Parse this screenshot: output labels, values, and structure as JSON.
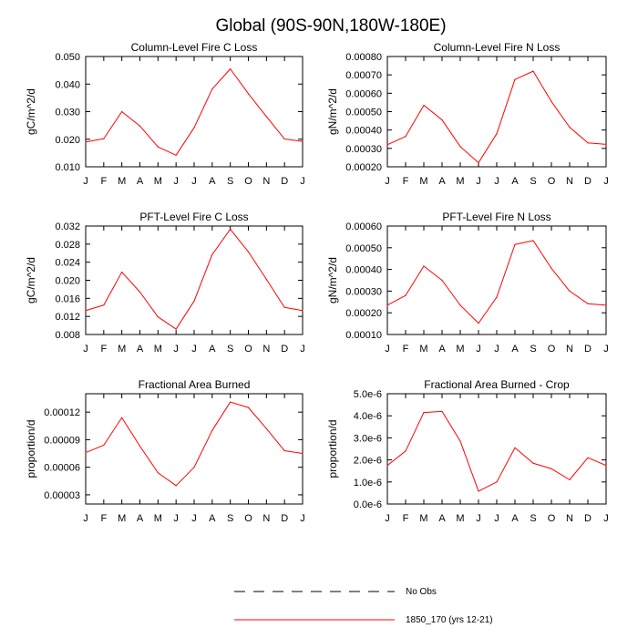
{
  "figure": {
    "title": "Global (90S-90N,180W-180E)"
  },
  "legend": {
    "entries": [
      {
        "label": "No Obs",
        "style": "dashed",
        "color": "#000000"
      },
      {
        "label": "1850_170 (yrs 12-21)",
        "style": "solid",
        "color": "#ff0000"
      }
    ]
  },
  "chart_data": [
    {
      "type": "line",
      "title": "Column-Level Fire C Loss",
      "ylabel": "gC/m^2/d",
      "categories": [
        "J",
        "F",
        "M",
        "A",
        "M",
        "J",
        "J",
        "A",
        "S",
        "O",
        "N",
        "D",
        "J"
      ],
      "series": [
        {
          "name": "1850_170 (yrs 12-21)",
          "color": "#ff0000",
          "values": [
            0.019,
            0.0202,
            0.03,
            0.0248,
            0.0172,
            0.0142,
            0.0242,
            0.0382,
            0.0455,
            0.0365,
            0.0282,
            0.0201,
            0.0192
          ]
        }
      ],
      "ylim": [
        0.01,
        0.05
      ],
      "yticks": [
        "0.010",
        "0.020",
        "0.030",
        "0.040",
        "0.050"
      ]
    },
    {
      "type": "line",
      "title": "Column-Level Fire N Loss",
      "ylabel": "gN/m^2/d",
      "categories": [
        "J",
        "F",
        "M",
        "A",
        "M",
        "J",
        "J",
        "A",
        "S",
        "O",
        "N",
        "D",
        "J"
      ],
      "series": [
        {
          "name": "1850_170 (yrs 12-21)",
          "color": "#ff0000",
          "values": [
            0.00032,
            0.000365,
            0.000535,
            0.000455,
            0.00031,
            0.000222,
            0.00038,
            0.000675,
            0.00072,
            0.000555,
            0.000415,
            0.00033,
            0.000322
          ]
        }
      ],
      "ylim": [
        0.0002,
        0.0008
      ],
      "yticks": [
        "0.00020",
        "0.00030",
        "0.00040",
        "0.00050",
        "0.00060",
        "0.00070",
        "0.00080"
      ]
    },
    {
      "type": "line",
      "title": "PFT-Level Fire C Loss",
      "ylabel": "gC/m^2/d",
      "categories": [
        "J",
        "F",
        "M",
        "A",
        "M",
        "J",
        "J",
        "A",
        "S",
        "O",
        "N",
        "D",
        "J"
      ],
      "series": [
        {
          "name": "1850_170 (yrs 12-21)",
          "color": "#ff0000",
          "values": [
            0.0133,
            0.0145,
            0.0218,
            0.0174,
            0.0119,
            0.0092,
            0.0154,
            0.0257,
            0.0313,
            0.0263,
            0.0202,
            0.014,
            0.0133
          ]
        }
      ],
      "ylim": [
        0.008,
        0.032
      ],
      "yticks": [
        "0.008",
        "0.012",
        "0.016",
        "0.020",
        "0.024",
        "0.028",
        "0.032"
      ]
    },
    {
      "type": "line",
      "title": "PFT-Level Fire N Loss",
      "ylabel": "gN/m^2/d",
      "categories": [
        "J",
        "F",
        "M",
        "A",
        "M",
        "J",
        "J",
        "A",
        "S",
        "O",
        "N",
        "D",
        "J"
      ],
      "series": [
        {
          "name": "1850_170 (yrs 12-21)",
          "color": "#ff0000",
          "values": [
            0.000235,
            0.00028,
            0.000415,
            0.00035,
            0.000235,
            0.000152,
            0.000272,
            0.000515,
            0.000533,
            0.000405,
            0.0003,
            0.000242,
            0.000235
          ]
        }
      ],
      "ylim": [
        0.0001,
        0.0006
      ],
      "yticks": [
        "0.00010",
        "0.00020",
        "0.00030",
        "0.00040",
        "0.00050",
        "0.00060"
      ]
    },
    {
      "type": "line",
      "title": "Fractional Area Burned",
      "ylabel": "proportion/d",
      "categories": [
        "J",
        "F",
        "M",
        "A",
        "M",
        "J",
        "J",
        "A",
        "S",
        "O",
        "N",
        "D",
        "J"
      ],
      "series": [
        {
          "name": "1850_170 (yrs 12-21)",
          "color": "#ff0000",
          "values": [
            7.6e-05,
            8.4e-05,
            0.000114,
            8.3e-05,
            5.4e-05,
            4e-05,
            6e-05,
            0.0001,
            0.000131,
            0.000125,
            0.000102,
            7.8e-05,
            7.5e-05
          ]
        }
      ],
      "ylim": [
        2e-05,
        0.00014
      ],
      "yticks": [
        "0.00003",
        "0.00006",
        "0.00009",
        "0.00012"
      ],
      "ytick_values": [
        3e-05,
        6e-05,
        9e-05,
        0.00012
      ]
    },
    {
      "type": "line",
      "title": "Fractional Area Burned - Crop",
      "ylabel": "proportion/d",
      "categories": [
        "J",
        "F",
        "M",
        "A",
        "M",
        "J",
        "J",
        "A",
        "S",
        "O",
        "N",
        "D",
        "J"
      ],
      "series": [
        {
          "name": "1850_170 (yrs 12-21)",
          "color": "#ff0000",
          "values": [
            1.75e-06,
            2.4e-06,
            4.15e-06,
            4.2e-06,
            2.85e-06,
            5.8e-07,
            1e-06,
            2.55e-06,
            1.85e-06,
            1.6e-06,
            1.1e-06,
            2.1e-06,
            1.75e-06
          ]
        }
      ],
      "ylim": [
        0,
        5e-06
      ],
      "yticks": [
        "0.0e-6",
        "1.0e-6",
        "2.0e-6",
        "3.0e-6",
        "4.0e-6",
        "5.0e-6"
      ]
    }
  ]
}
